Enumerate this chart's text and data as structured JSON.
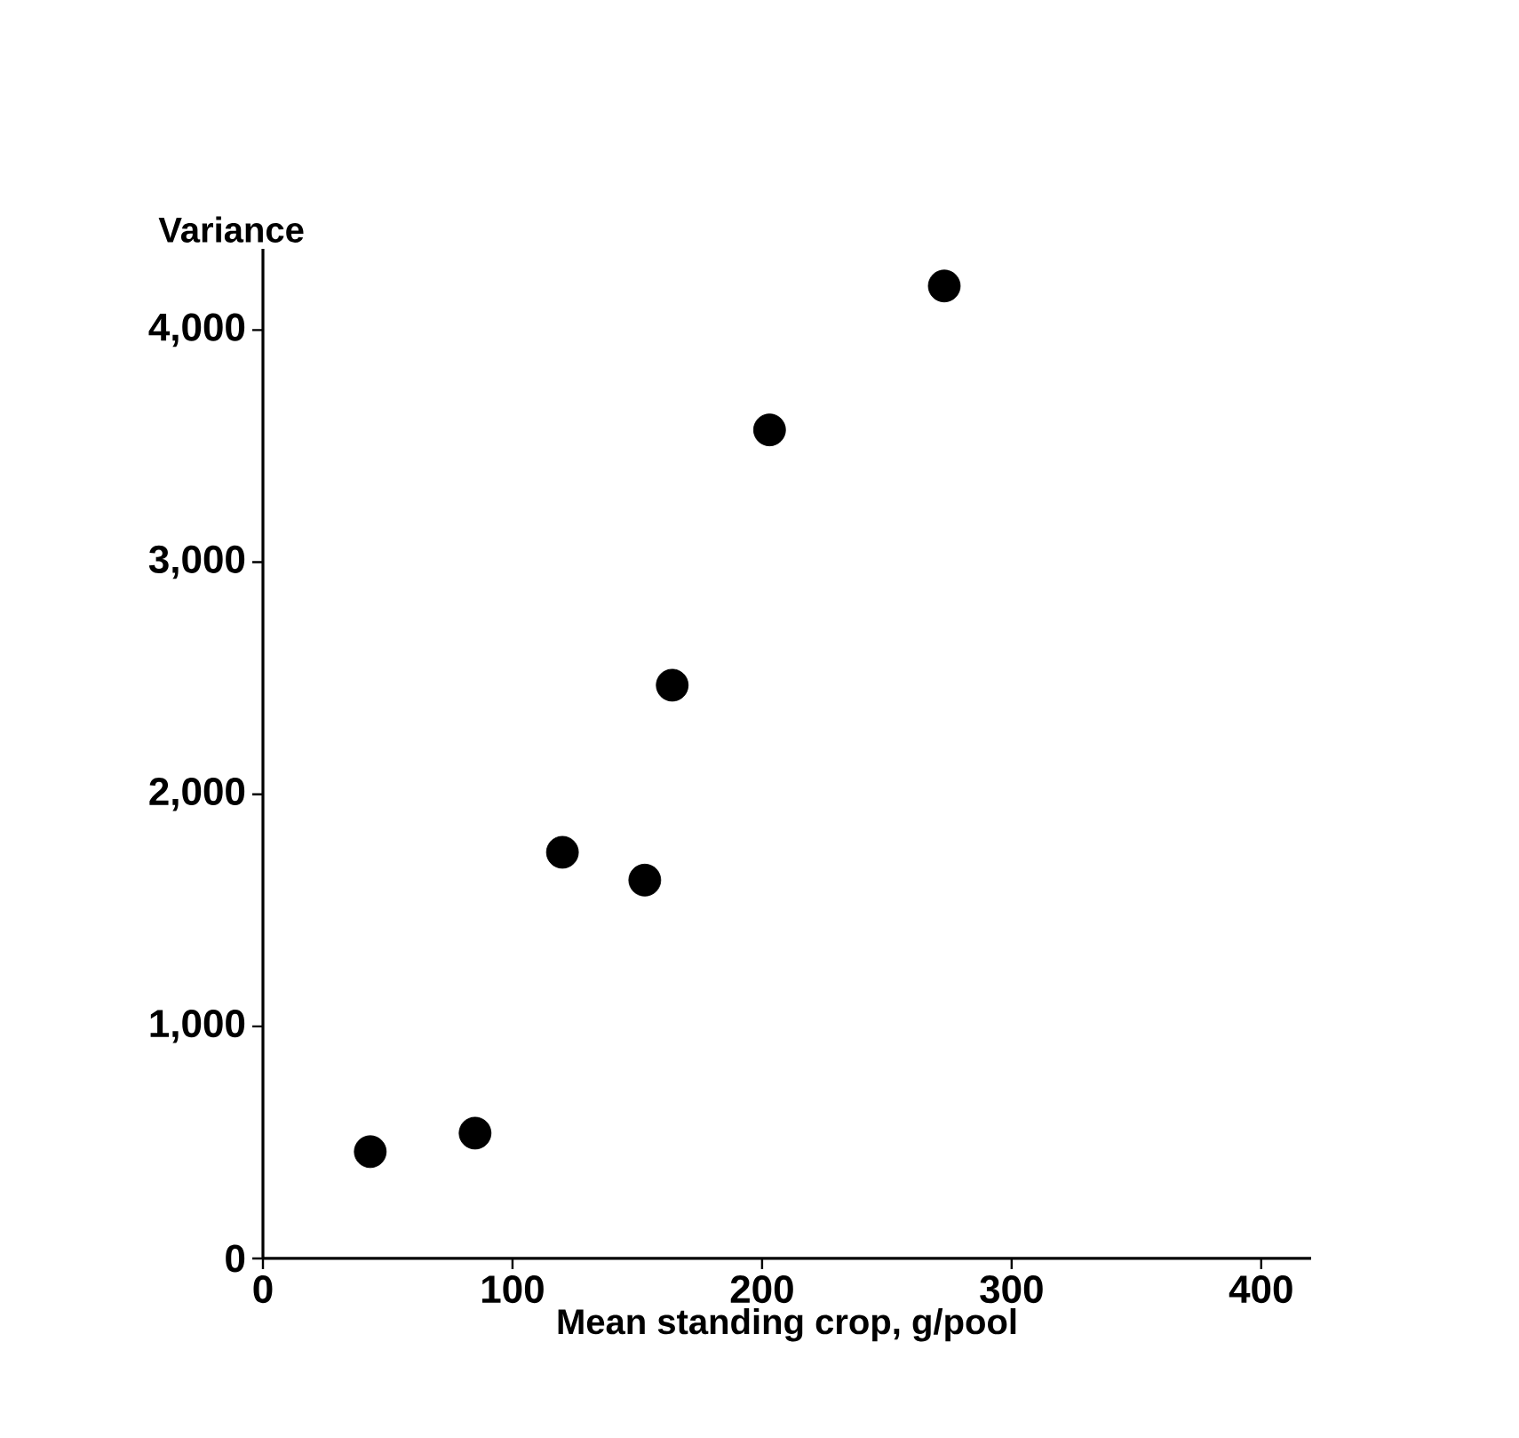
{
  "chart_data": {
    "type": "scatter",
    "xlabel": "Mean standing crop, g/pool",
    "ylabel": "Variance",
    "x": [
      43,
      85,
      120,
      153,
      164,
      203,
      273
    ],
    "values": [
      460,
      540,
      1750,
      1630,
      2470,
      3570,
      4190
    ],
    "color": "#000000",
    "marker": "circle",
    "grid": false,
    "xlim": [
      0,
      420
    ],
    "ylim": [
      0,
      4350
    ],
    "xticks": [
      0,
      100,
      200,
      300,
      400
    ],
    "yticks": [
      0,
      {
        "value": 1000,
        "label": "1,000"
      },
      {
        "value": 2000,
        "label": "2,000"
      },
      {
        "value": 3000,
        "label": "3,000"
      },
      {
        "value": 4000,
        "label": "4,000"
      }
    ]
  }
}
